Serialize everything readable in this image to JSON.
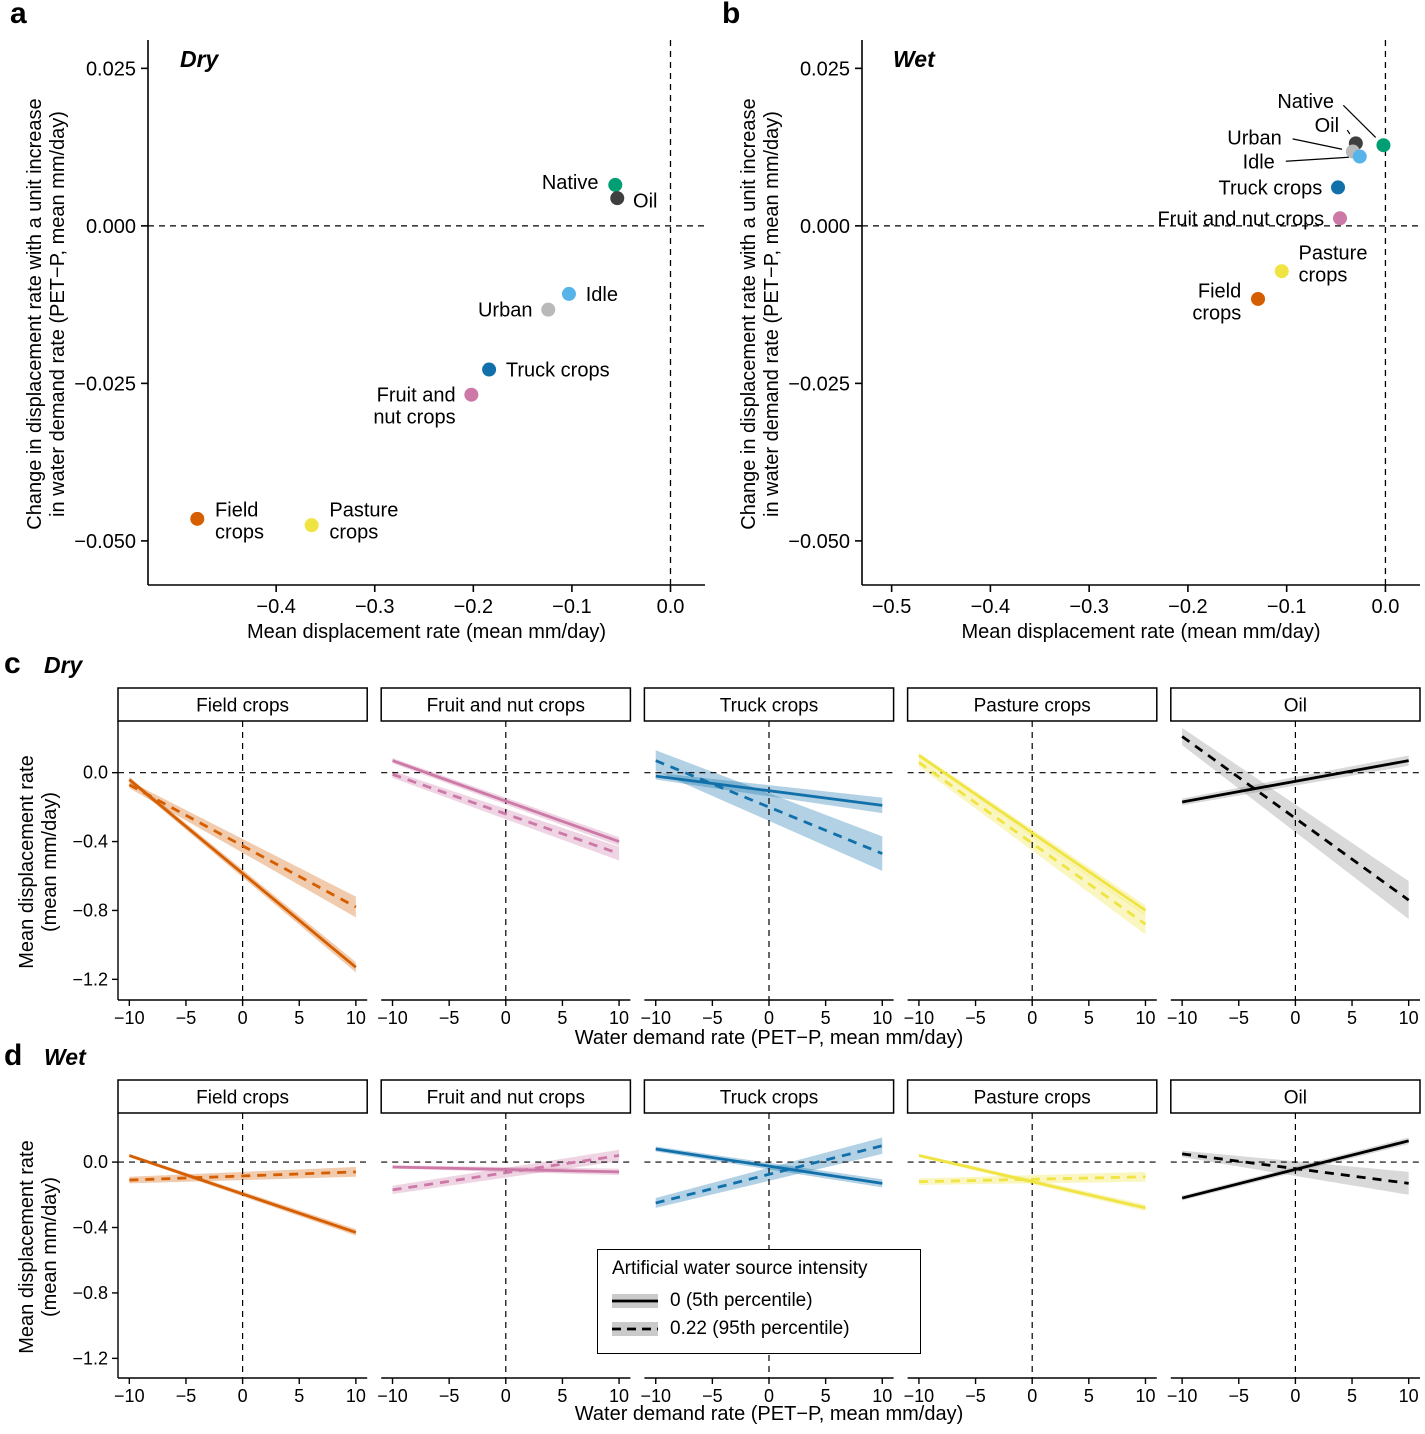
{
  "panels": {
    "a": {
      "letter": "a",
      "climate": "Dry"
    },
    "b": {
      "letter": "b",
      "climate": "Wet"
    },
    "c": {
      "letter": "c",
      "climate": "Dry"
    },
    "d": {
      "letter": "d",
      "climate": "Wet"
    }
  },
  "colors": {
    "native": "#009E73",
    "oil_point": "#3F3F3F",
    "urban": "#B9B9B9",
    "idle": "#56B4E9",
    "truck_crops": "#1170AA",
    "fruit_nut_crops": "#CC79A7",
    "field_crops": "#D55E00",
    "pasture_crops": "#F0E442",
    "oil_line": "#000000",
    "oil_band": "#8A8A8A"
  },
  "chart_data": [
    {
      "id": "a",
      "type": "scatter",
      "climate": "Dry",
      "xlabel": "Mean displacement rate (mean mm/day)",
      "ylabel_lines": [
        "Change in displacement rate with a unit increase",
        "in water demand rate (PET−P, mean mm/day)"
      ],
      "xlim": [
        -0.53,
        0.035
      ],
      "ylim": [
        -0.057,
        0.0295
      ],
      "xticks": [
        -0.4,
        -0.3,
        -0.2,
        -0.1,
        0.0
      ],
      "xtick_labels": [
        "−0.4",
        "−0.3",
        "−0.2",
        "−0.1",
        "0.0"
      ],
      "yticks": [
        0.025,
        0.0,
        -0.025,
        -0.05
      ],
      "ytick_labels": [
        "0.025",
        "0.000",
        "−0.025",
        "−0.050"
      ],
      "points": [
        {
          "name": "Native",
          "x": -0.056,
          "y": 0.0065,
          "color_key": "native",
          "label_lines": [
            "Native"
          ],
          "label_x": -0.073,
          "label_y": 0.007,
          "anchor": "end"
        },
        {
          "name": "Oil",
          "x": -0.054,
          "y": 0.0044,
          "color_key": "oil_point",
          "label_lines": [
            "Oil"
          ],
          "label_x": -0.038,
          "label_y": 0.004,
          "anchor": "start"
        },
        {
          "name": "Idle",
          "x": -0.103,
          "y": -0.0108,
          "color_key": "idle",
          "label_lines": [
            "Idle"
          ],
          "label_x": -0.086,
          "label_y": -0.0108,
          "anchor": "start"
        },
        {
          "name": "Urban",
          "x": -0.124,
          "y": -0.0133,
          "color_key": "urban",
          "label_lines": [
            "Urban"
          ],
          "label_x": -0.14,
          "label_y": -0.0133,
          "anchor": "end"
        },
        {
          "name": "Truck crops",
          "x": -0.184,
          "y": -0.0228,
          "color_key": "truck_crops",
          "label_lines": [
            "Truck crops"
          ],
          "label_x": -0.167,
          "label_y": -0.0228,
          "anchor": "start"
        },
        {
          "name": "Fruit and nut crops",
          "x": -0.202,
          "y": -0.0268,
          "color_key": "fruit_nut_crops",
          "label_lines": [
            "Fruit and",
            "nut crops"
          ],
          "label_x": -0.218,
          "label_y": -0.0285,
          "anchor": "end"
        },
        {
          "name": "Field crops",
          "x": -0.48,
          "y": -0.0465,
          "color_key": "field_crops",
          "label_lines": [
            "Field",
            "crops"
          ],
          "label_x": -0.462,
          "label_y": -0.0468,
          "anchor": "start"
        },
        {
          "name": "Pasture crops",
          "x": -0.364,
          "y": -0.0475,
          "color_key": "pasture_crops",
          "label_lines": [
            "Pasture",
            "crops"
          ],
          "label_x": -0.346,
          "label_y": -0.0468,
          "anchor": "start"
        }
      ]
    },
    {
      "id": "b",
      "type": "scatter",
      "climate": "Wet",
      "xlabel": "Mean displacement rate (mean mm/day)",
      "ylabel_lines": [
        "Change in displacement rate with a unit increase",
        "in water demand rate (PET−P, mean mm/day)"
      ],
      "xlim": [
        -0.53,
        0.035
      ],
      "ylim": [
        -0.057,
        0.0295
      ],
      "xticks": [
        -0.5,
        -0.4,
        -0.3,
        -0.2,
        -0.1,
        0.0
      ],
      "xtick_labels": [
        "−0.5",
        "−0.4",
        "−0.3",
        "−0.2",
        "−0.1",
        "0.0"
      ],
      "yticks": [
        0.025,
        0.0,
        -0.025,
        -0.05
      ],
      "ytick_labels": [
        "0.025",
        "0.000",
        "−0.025",
        "−0.050"
      ],
      "points": [
        {
          "name": "Native",
          "x": -0.002,
          "y": 0.0128,
          "color_key": "native",
          "label_lines": [
            "Native"
          ],
          "label_x": -0.052,
          "label_y": 0.0198,
          "anchor": "end",
          "leader": true
        },
        {
          "name": "Oil",
          "x": -0.03,
          "y": 0.0131,
          "color_key": "oil_point",
          "label_lines": [
            "Oil"
          ],
          "label_x": -0.047,
          "label_y": 0.016,
          "anchor": "end",
          "leader": true
        },
        {
          "name": "Urban",
          "x": -0.033,
          "y": 0.0118,
          "color_key": "urban",
          "label_lines": [
            "Urban"
          ],
          "label_x": -0.105,
          "label_y": 0.014,
          "anchor": "end",
          "leader": true
        },
        {
          "name": "Idle",
          "x": -0.026,
          "y": 0.011,
          "color_key": "idle",
          "label_lines": [
            "Idle"
          ],
          "label_x": -0.112,
          "label_y": 0.0102,
          "anchor": "end",
          "leader": true
        },
        {
          "name": "Truck crops",
          "x": -0.048,
          "y": 0.0061,
          "color_key": "truck_crops",
          "label_lines": [
            "Truck crops"
          ],
          "label_x": -0.064,
          "label_y": 0.0061,
          "anchor": "end"
        },
        {
          "name": "Fruit and nut crops",
          "x": -0.046,
          "y": 0.0012,
          "color_key": "fruit_nut_crops",
          "label_lines": [
            "Fruit and nut crops"
          ],
          "label_x": -0.062,
          "label_y": 0.0012,
          "anchor": "end"
        },
        {
          "name": "Pasture crops",
          "x": -0.105,
          "y": -0.0072,
          "color_key": "pasture_crops",
          "label_lines": [
            "Pasture",
            "crops"
          ],
          "label_x": -0.088,
          "label_y": -0.006,
          "anchor": "start"
        },
        {
          "name": "Field crops",
          "x": -0.129,
          "y": -0.0116,
          "color_key": "field_crops",
          "label_lines": [
            "Field",
            "crops"
          ],
          "label_x": -0.146,
          "label_y": -0.012,
          "anchor": "end"
        }
      ]
    },
    {
      "id": "c",
      "type": "line-facets",
      "climate": "Dry",
      "xlabel": "Water demand rate (PET−P, mean mm/day)",
      "ylabel_lines": [
        "Mean displacement rate",
        "(mean mm/day)"
      ],
      "xlim": [
        -11,
        11
      ],
      "ylim": [
        -1.32,
        0.3
      ],
      "xticks": [
        -10,
        -5,
        0,
        5,
        10
      ],
      "xtick_labels": [
        "−10",
        "−5",
        "0",
        "5",
        "10"
      ],
      "yticks": [
        0.0,
        -0.4,
        -0.8,
        -1.2
      ],
      "ytick_labels": [
        "0.0",
        "−0.4",
        "−0.8",
        "−1.2"
      ],
      "facets": [
        {
          "name": "Field crops",
          "color_key": "field_crops",
          "solid": {
            "x": [
              -10,
              10
            ],
            "y": [
              -0.04,
              -1.13
            ],
            "band": [
              0.015,
              0.03
            ]
          },
          "dashed": {
            "x": [
              -10,
              10
            ],
            "y": [
              -0.07,
              -0.78
            ],
            "band": [
              0.02,
              0.06
            ]
          }
        },
        {
          "name": "Fruit and nut crops",
          "color_key": "fruit_nut_crops",
          "solid": {
            "x": [
              -10,
              10
            ],
            "y": [
              0.07,
              -0.4
            ],
            "band": [
              0.015,
              0.025
            ]
          },
          "dashed": {
            "x": [
              -10,
              10
            ],
            "y": [
              -0.01,
              -0.47
            ],
            "band": [
              0.02,
              0.04
            ]
          }
        },
        {
          "name": "Truck crops",
          "color_key": "truck_crops",
          "solid": {
            "x": [
              -10,
              10
            ],
            "y": [
              -0.02,
              -0.19
            ],
            "band": [
              0.02,
              0.045
            ]
          },
          "dashed": {
            "x": [
              -10,
              10
            ],
            "y": [
              0.07,
              -0.47
            ],
            "band": [
              0.06,
              0.1
            ]
          }
        },
        {
          "name": "Pasture crops",
          "color_key": "pasture_crops",
          "solid": {
            "x": [
              -10,
              10
            ],
            "y": [
              0.1,
              -0.8
            ],
            "band": [
              0.015,
              0.03
            ]
          },
          "dashed": {
            "x": [
              -10,
              10
            ],
            "y": [
              0.06,
              -0.88
            ],
            "band": [
              0.025,
              0.06
            ]
          }
        },
        {
          "name": "Oil",
          "color_key": "oil_line",
          "band_color_key": "oil_band",
          "solid": {
            "x": [
              -10,
              10
            ],
            "y": [
              -0.17,
              0.07
            ],
            "band": [
              0.02,
              0.03
            ]
          },
          "dashed": {
            "x": [
              -10,
              10
            ],
            "y": [
              0.21,
              -0.74
            ],
            "band": [
              0.05,
              0.11
            ]
          }
        }
      ]
    },
    {
      "id": "d",
      "type": "line-facets",
      "climate": "Wet",
      "xlabel": "Water demand rate (PET−P, mean mm/day)",
      "ylabel_lines": [
        "Mean displacement rate",
        "(mean mm/day)"
      ],
      "xlim": [
        -11,
        11
      ],
      "ylim": [
        -1.32,
        0.3
      ],
      "xticks": [
        -10,
        -5,
        0,
        5,
        10
      ],
      "xtick_labels": [
        "−10",
        "−5",
        "0",
        "5",
        "10"
      ],
      "yticks": [
        0.0,
        -0.4,
        -0.8,
        -1.2
      ],
      "ytick_labels": [
        "0.0",
        "−0.4",
        "−0.8",
        "−1.2"
      ],
      "facets": [
        {
          "name": "Field crops",
          "color_key": "field_crops",
          "solid": {
            "x": [
              -10,
              10
            ],
            "y": [
              0.04,
              -0.43
            ],
            "band": [
              0.01,
              0.02
            ]
          },
          "dashed": {
            "x": [
              -10,
              10
            ],
            "y": [
              -0.11,
              -0.06
            ],
            "band": [
              0.02,
              0.03
            ]
          }
        },
        {
          "name": "Fruit and nut crops",
          "color_key": "fruit_nut_crops",
          "solid": {
            "x": [
              -10,
              10
            ],
            "y": [
              -0.03,
              -0.06
            ],
            "band": [
              0.01,
              0.02
            ]
          },
          "dashed": {
            "x": [
              -10,
              10
            ],
            "y": [
              -0.17,
              0.04
            ],
            "band": [
              0.025,
              0.035
            ]
          }
        },
        {
          "name": "Truck crops",
          "color_key": "truck_crops",
          "solid": {
            "x": [
              -10,
              10
            ],
            "y": [
              0.08,
              -0.13
            ],
            "band": [
              0.015,
              0.025
            ]
          },
          "dashed": {
            "x": [
              -10,
              10
            ],
            "y": [
              -0.25,
              0.1
            ],
            "band": [
              0.03,
              0.05
            ]
          }
        },
        {
          "name": "Pasture crops",
          "color_key": "pasture_crops",
          "solid": {
            "x": [
              -10,
              10
            ],
            "y": [
              0.04,
              -0.28
            ],
            "band": [
              0.01,
              0.02
            ]
          },
          "dashed": {
            "x": [
              -10,
              10
            ],
            "y": [
              -0.12,
              -0.09
            ],
            "band": [
              0.02,
              0.03
            ]
          }
        },
        {
          "name": "Oil",
          "color_key": "oil_line",
          "band_color_key": "oil_band",
          "solid": {
            "x": [
              -10,
              10
            ],
            "y": [
              -0.22,
              0.13
            ],
            "band": [
              0.015,
              0.02
            ]
          },
          "dashed": {
            "x": [
              -10,
              10
            ],
            "y": [
              0.05,
              -0.13
            ],
            "band": [
              0.02,
              0.07
            ]
          }
        }
      ],
      "legend": {
        "title": "Artificial water source intensity",
        "entries": [
          {
            "style": "solid",
            "label": "0 (5th percentile)"
          },
          {
            "style": "dashed",
            "label": "0.22 (95th percentile)"
          }
        ]
      }
    }
  ]
}
